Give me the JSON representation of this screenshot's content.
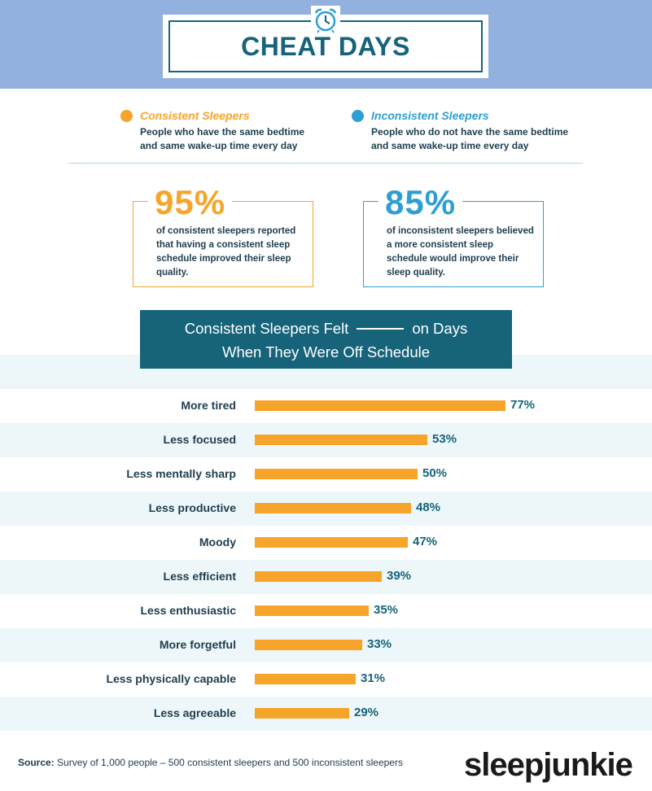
{
  "header": {
    "title": "CHEAT DAYS"
  },
  "legend": [
    {
      "title": "Consistent Sleepers",
      "desc": "People who have the same bedtime and same wake-up time every day",
      "color": "#f7a52a"
    },
    {
      "title": "Inconsistent Sleepers",
      "desc": "People who do not have the same bedtime and same wake-up time every day",
      "color": "#2e9fd3"
    }
  ],
  "stats": [
    {
      "pct": "95%",
      "text": "of consistent sleepers reported that having a consistent sleep schedule improved their sleep quality.",
      "color": "#f7a52a"
    },
    {
      "pct": "85%",
      "text": "of inconsistent sleepers believed a more consistent sleep schedule would improve their sleep quality.",
      "color": "#2e9fd3"
    }
  ],
  "chart_title": {
    "line1_start": "Consistent Sleepers Felt",
    "line1_end": "on Days",
    "line2": "When They Were Off Schedule"
  },
  "chart_data": {
    "type": "bar",
    "orientation": "horizontal",
    "title": "Consistent Sleepers Felt ____ on Days When They Were Off Schedule",
    "categories": [
      "More tired",
      "Less focused",
      "Less mentally sharp",
      "Less productive",
      "Moody",
      "Less efficient",
      "Less enthusiastic",
      "More forgetful",
      "Less physically capable",
      "Less agreeable"
    ],
    "values": [
      77,
      53,
      50,
      48,
      47,
      39,
      35,
      33,
      31,
      29
    ],
    "value_labels": [
      "77%",
      "53%",
      "50%",
      "48%",
      "47%",
      "39%",
      "35%",
      "33%",
      "31%",
      "29%"
    ],
    "bar_color": "#f7a52a",
    "xlim": [
      0,
      100
    ],
    "grid": false
  },
  "footer": {
    "source_label": "Source:",
    "source_text": "Survey of 1,000 people – 500 consistent sleepers and 500 inconsistent sleepers",
    "brand": "sleepjunkie"
  }
}
